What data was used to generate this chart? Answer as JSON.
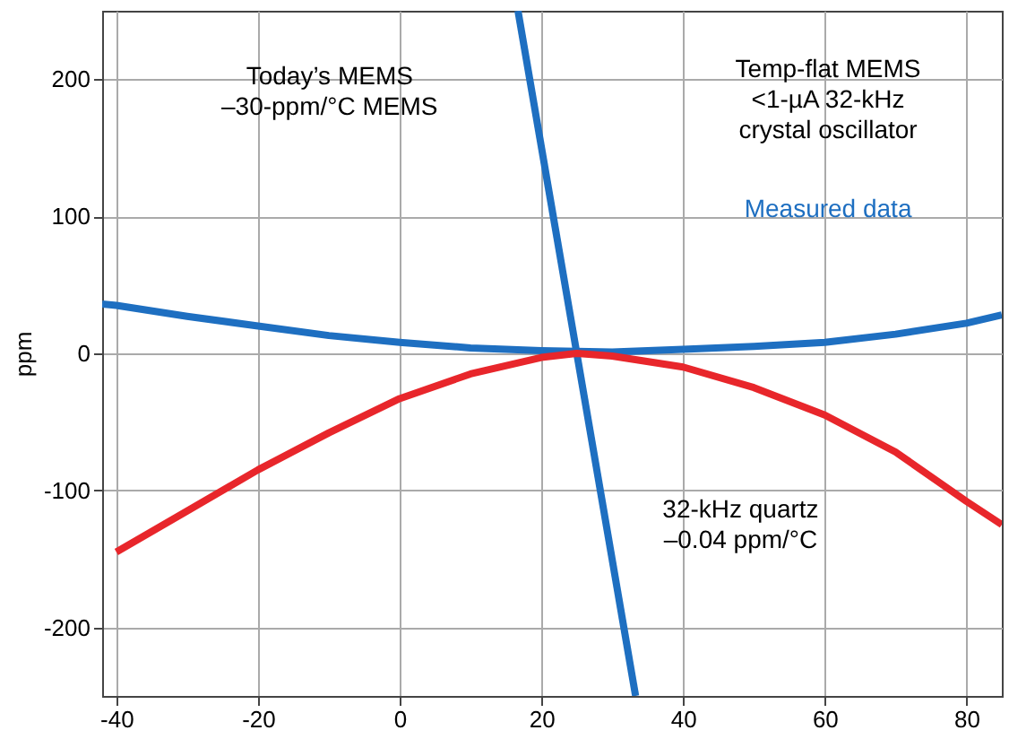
{
  "chart_data": {
    "type": "line",
    "ylabel": "ppm",
    "xlim": [
      -42,
      85
    ],
    "ylim": [
      -250,
      250
    ],
    "xticks": [
      -40,
      -20,
      0,
      20,
      40,
      60,
      80
    ],
    "yticks": [
      -200,
      -100,
      0,
      100,
      200
    ],
    "grid": true,
    "marker": "none",
    "line_style": "solid",
    "series": [
      {
        "color": "#1e6fc1",
        "x": [
          16.7,
          33.3
        ],
        "values": [
          250,
          -250
        ]
      },
      {
        "color": "#1e6fc1",
        "x": [
          -42,
          -40,
          -30,
          -20,
          -10,
          0,
          10,
          20,
          30,
          40,
          50,
          60,
          70,
          80,
          85
        ],
        "values": [
          36,
          35,
          27,
          20,
          13,
          8,
          4,
          2,
          1,
          3,
          5,
          8,
          14,
          22,
          28
        ]
      },
      {
        "color": "#e8262b",
        "x": [
          -40,
          -30,
          -20,
          -10,
          0,
          10,
          20,
          25,
          30,
          40,
          50,
          60,
          70,
          80,
          85
        ],
        "values": [
          -145,
          -115,
          -85,
          -58,
          -33,
          -15,
          -3,
          0,
          -2,
          -10,
          -25,
          -45,
          -72,
          -108,
          -125
        ]
      }
    ],
    "annotations": [
      "Today’s MEMS\n–30-ppm/°C MEMS",
      "Temp-flat MEMS\n<1-µA 32-kHz\ncrystal oscillator",
      "Measured data",
      "32-kHz quartz\n–0.04 ppm/°C"
    ]
  }
}
